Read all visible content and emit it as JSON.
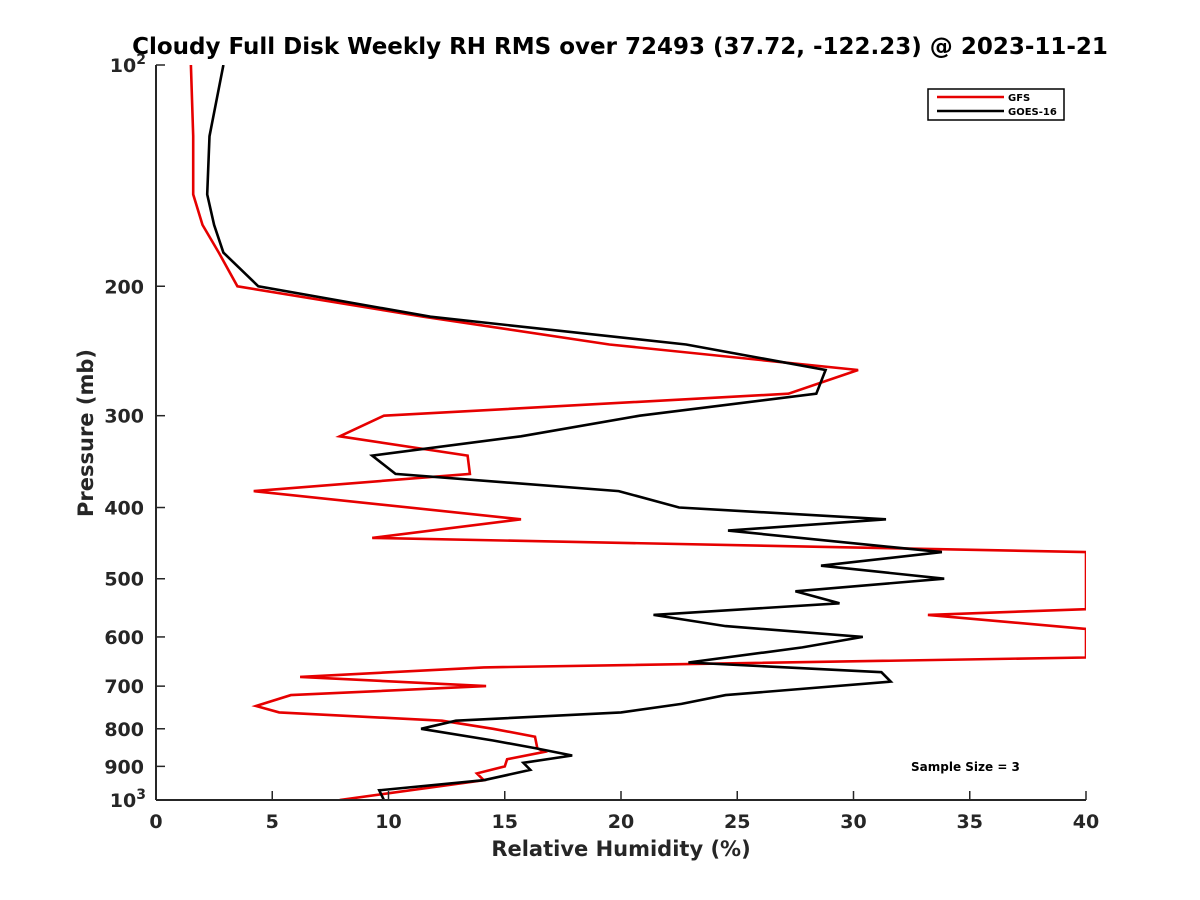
{
  "chart_data": {
    "type": "line",
    "title": "Cloudy Full Disk Weekly RH RMS over 72493 (37.72, -122.23) @ 2023-11-21",
    "xlabel": "Relative Humidity (%)",
    "ylabel": "Pressure (mb)",
    "xlim": [
      0,
      40
    ],
    "ylim": [
      100,
      1000
    ],
    "yscale": "log",
    "y_reversed": true,
    "grid": false,
    "legend_position": "top-right",
    "x_ticks": [
      "0",
      "5",
      "10",
      "15",
      "20",
      "25",
      "30",
      "35",
      "40"
    ],
    "y_ticks": [
      {
        "value": 200,
        "label": "200"
      },
      {
        "value": 300,
        "label": "300"
      },
      {
        "value": 400,
        "label": "400"
      },
      {
        "value": 500,
        "label": "500"
      },
      {
        "value": 600,
        "label": "600"
      },
      {
        "value": 700,
        "label": "700"
      },
      {
        "value": 800,
        "label": "800"
      },
      {
        "value": 900,
        "label": "900"
      }
    ],
    "y_tick_powers": [
      {
        "value": 100,
        "base": "10",
        "exp": "2"
      },
      {
        "value": 1000,
        "base": "10",
        "exp": "3"
      }
    ],
    "annotation": "Sample Size = 3",
    "series": [
      {
        "name": "GFS",
        "color": "#e60000",
        "x": [
          1.5,
          1.6,
          1.6,
          2.0,
          2.7,
          3.5,
          11.5,
          19.5,
          30.2,
          27.2,
          9.8,
          7.9,
          13.4,
          13.5,
          4.2,
          15.7,
          9.3,
          40.0,
          40.0,
          33.2,
          40.0,
          40.0,
          14.1,
          6.2,
          14.2,
          5.8,
          4.3,
          5.3,
          12.3,
          14.5,
          16.3,
          16.4,
          16.7,
          15.1,
          15.0,
          13.8,
          14.1,
          7.9
        ],
        "y": [
          100,
          125,
          150,
          165,
          180,
          200,
          220,
          240,
          260,
          280,
          300,
          320,
          340,
          360,
          380,
          415,
          440,
          460,
          550,
          560,
          585,
          640,
          660,
          680,
          700,
          720,
          745,
          760,
          780,
          800,
          820,
          850,
          860,
          880,
          900,
          920,
          940,
          1000
        ]
      },
      {
        "name": "GOES-16",
        "color": "#000000",
        "x": [
          2.9,
          2.3,
          2.2,
          2.5,
          2.9,
          4.4,
          11.8,
          22.8,
          28.8,
          28.4,
          20.8,
          15.7,
          9.3,
          10.3,
          19.9,
          22.5,
          31.4,
          24.6,
          33.8,
          28.6,
          33.9,
          27.5,
          29.4,
          21.4,
          24.5,
          30.4,
          27.8,
          22.9,
          31.2,
          31.6,
          24.5,
          22.6,
          20.0,
          12.9,
          11.4,
          14.5,
          16.3,
          17.9,
          15.8,
          16.1,
          14.1,
          9.6,
          9.8
        ],
        "y": [
          100,
          125,
          150,
          165,
          180,
          200,
          220,
          240,
          260,
          280,
          300,
          320,
          340,
          360,
          380,
          400,
          415,
          430,
          460,
          480,
          500,
          520,
          540,
          560,
          580,
          600,
          620,
          650,
          670,
          690,
          720,
          740,
          760,
          780,
          800,
          830,
          850,
          870,
          890,
          910,
          940,
          970,
          1000
        ]
      }
    ]
  }
}
